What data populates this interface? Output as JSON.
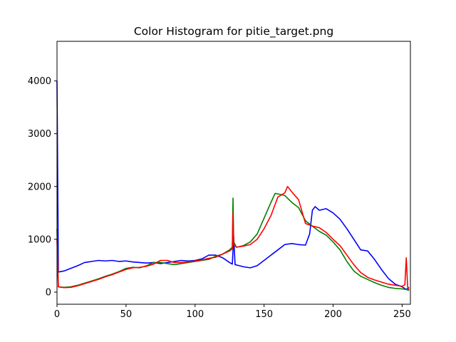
{
  "chart_data": {
    "type": "line",
    "title": "Color Histogram for pitie_target.png",
    "xlabel": "",
    "ylabel": "",
    "xlim": [
      0,
      256
    ],
    "ylim": [
      -230,
      4750
    ],
    "x_ticks": [
      0,
      50,
      100,
      150,
      200,
      250
    ],
    "y_ticks": [
      0,
      1000,
      2000,
      3000,
      4000
    ],
    "grid": false,
    "legend": "none",
    "series": [
      {
        "color": "#0000ff",
        "points": [
          [
            0,
            4000
          ],
          [
            0.5,
            2200
          ],
          [
            1,
            380
          ],
          [
            5,
            400
          ],
          [
            10,
            450
          ],
          [
            15,
            500
          ],
          [
            20,
            560
          ],
          [
            25,
            580
          ],
          [
            30,
            600
          ],
          [
            35,
            590
          ],
          [
            40,
            600
          ],
          [
            45,
            580
          ],
          [
            50,
            590
          ],
          [
            55,
            570
          ],
          [
            60,
            560
          ],
          [
            65,
            550
          ],
          [
            70,
            560
          ],
          [
            75,
            540
          ],
          [
            80,
            560
          ],
          [
            85,
            580
          ],
          [
            90,
            600
          ],
          [
            95,
            590
          ],
          [
            100,
            600
          ],
          [
            105,
            630
          ],
          [
            110,
            700
          ],
          [
            115,
            700
          ],
          [
            120,
            650
          ],
          [
            125,
            560
          ],
          [
            127,
            530
          ],
          [
            128,
            1050
          ],
          [
            129,
            520
          ],
          [
            132,
            500
          ],
          [
            135,
            480
          ],
          [
            140,
            460
          ],
          [
            145,
            500
          ],
          [
            150,
            600
          ],
          [
            155,
            700
          ],
          [
            160,
            800
          ],
          [
            165,
            900
          ],
          [
            170,
            920
          ],
          [
            175,
            900
          ],
          [
            180,
            890
          ],
          [
            183,
            1100
          ],
          [
            185,
            1550
          ],
          [
            187,
            1620
          ],
          [
            190,
            1550
          ],
          [
            195,
            1580
          ],
          [
            200,
            1500
          ],
          [
            205,
            1380
          ],
          [
            210,
            1200
          ],
          [
            215,
            1000
          ],
          [
            220,
            800
          ],
          [
            225,
            780
          ],
          [
            230,
            620
          ],
          [
            235,
            430
          ],
          [
            240,
            260
          ],
          [
            245,
            150
          ],
          [
            250,
            100
          ],
          [
            253,
            50
          ],
          [
            255,
            90
          ]
        ]
      },
      {
        "color": "#008000",
        "points": [
          [
            0,
            1200
          ],
          [
            0.5,
            600
          ],
          [
            1,
            100
          ],
          [
            5,
            90
          ],
          [
            10,
            100
          ],
          [
            15,
            130
          ],
          [
            20,
            170
          ],
          [
            25,
            210
          ],
          [
            30,
            250
          ],
          [
            35,
            300
          ],
          [
            40,
            340
          ],
          [
            45,
            390
          ],
          [
            50,
            450
          ],
          [
            55,
            470
          ],
          [
            60,
            460
          ],
          [
            65,
            500
          ],
          [
            70,
            560
          ],
          [
            75,
            560
          ],
          [
            80,
            540
          ],
          [
            85,
            520
          ],
          [
            90,
            540
          ],
          [
            95,
            560
          ],
          [
            100,
            580
          ],
          [
            105,
            600
          ],
          [
            110,
            620
          ],
          [
            115,
            680
          ],
          [
            120,
            720
          ],
          [
            125,
            800
          ],
          [
            127,
            850
          ],
          [
            127.5,
            1780
          ],
          [
            128,
            950
          ],
          [
            130,
            850
          ],
          [
            135,
            880
          ],
          [
            140,
            950
          ],
          [
            145,
            1100
          ],
          [
            150,
            1400
          ],
          [
            155,
            1700
          ],
          [
            158,
            1870
          ],
          [
            160,
            1860
          ],
          [
            165,
            1830
          ],
          [
            170,
            1700
          ],
          [
            175,
            1600
          ],
          [
            180,
            1350
          ],
          [
            185,
            1250
          ],
          [
            190,
            1150
          ],
          [
            195,
            1080
          ],
          [
            200,
            950
          ],
          [
            205,
            800
          ],
          [
            210,
            580
          ],
          [
            215,
            400
          ],
          [
            220,
            300
          ],
          [
            225,
            240
          ],
          [
            230,
            180
          ],
          [
            235,
            130
          ],
          [
            240,
            90
          ],
          [
            245,
            70
          ],
          [
            250,
            60
          ],
          [
            253,
            50
          ],
          [
            255,
            30
          ]
        ]
      },
      {
        "color": "#ff0000",
        "points": [
          [
            0,
            1000
          ],
          [
            0.5,
            500
          ],
          [
            1,
            100
          ],
          [
            5,
            85
          ],
          [
            10,
            90
          ],
          [
            15,
            120
          ],
          [
            20,
            160
          ],
          [
            25,
            200
          ],
          [
            30,
            240
          ],
          [
            35,
            290
          ],
          [
            40,
            330
          ],
          [
            45,
            380
          ],
          [
            50,
            430
          ],
          [
            55,
            460
          ],
          [
            60,
            470
          ],
          [
            65,
            490
          ],
          [
            70,
            530
          ],
          [
            75,
            600
          ],
          [
            80,
            600
          ],
          [
            85,
            560
          ],
          [
            90,
            560
          ],
          [
            95,
            570
          ],
          [
            100,
            590
          ],
          [
            105,
            610
          ],
          [
            110,
            640
          ],
          [
            115,
            660
          ],
          [
            120,
            720
          ],
          [
            125,
            780
          ],
          [
            127,
            820
          ],
          [
            127.5,
            1500
          ],
          [
            128,
            900
          ],
          [
            130,
            850
          ],
          [
            135,
            870
          ],
          [
            140,
            900
          ],
          [
            145,
            1000
          ],
          [
            150,
            1200
          ],
          [
            155,
            1450
          ],
          [
            160,
            1800
          ],
          [
            165,
            1880
          ],
          [
            167,
            2000
          ],
          [
            170,
            1900
          ],
          [
            175,
            1750
          ],
          [
            180,
            1300
          ],
          [
            185,
            1250
          ],
          [
            190,
            1220
          ],
          [
            195,
            1130
          ],
          [
            200,
            1000
          ],
          [
            205,
            880
          ],
          [
            210,
            700
          ],
          [
            215,
            520
          ],
          [
            220,
            370
          ],
          [
            225,
            280
          ],
          [
            230,
            230
          ],
          [
            235,
            190
          ],
          [
            240,
            150
          ],
          [
            245,
            130
          ],
          [
            250,
            110
          ],
          [
            252,
            140
          ],
          [
            253,
            650
          ],
          [
            254,
            100
          ],
          [
            255,
            40
          ]
        ]
      }
    ]
  }
}
